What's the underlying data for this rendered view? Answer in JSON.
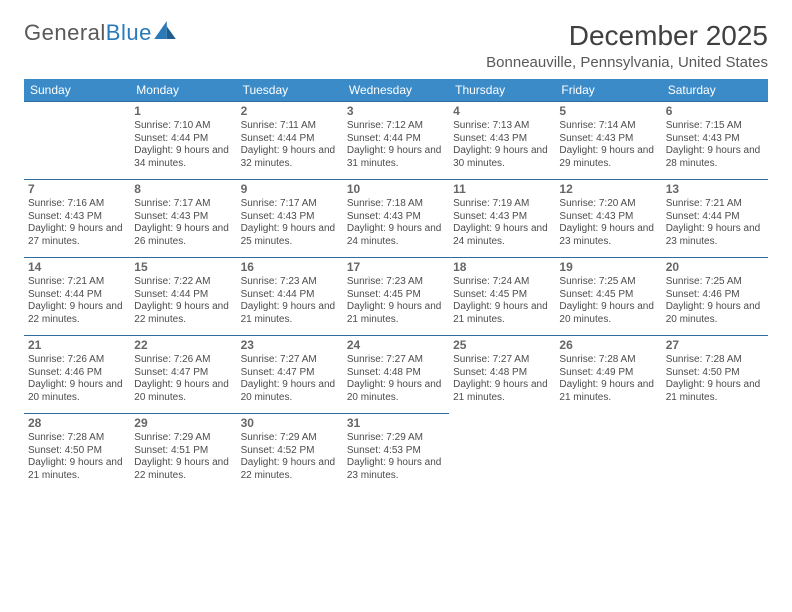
{
  "logo": {
    "text1": "General",
    "text2": "Blue"
  },
  "title": "December 2025",
  "location": "Bonneauville, Pennsylvania, United States",
  "colors": {
    "header_bg": "#3b8bc9",
    "header_text": "#ffffff",
    "cell_border": "#2e6ca0",
    "body_text": "#4a4a4a",
    "title_text": "#404040",
    "logo_gray": "#595959",
    "logo_blue": "#2a7ab8",
    "background": "#ffffff"
  },
  "typography": {
    "title_fontsize": 28,
    "location_fontsize": 15,
    "weekday_fontsize": 12,
    "daynum_fontsize": 12,
    "cell_fontsize": 10
  },
  "weekdays": [
    "Sunday",
    "Monday",
    "Tuesday",
    "Wednesday",
    "Thursday",
    "Friday",
    "Saturday"
  ],
  "weeks": [
    [
      null,
      {
        "n": "1",
        "sunrise": "7:10 AM",
        "sunset": "4:44 PM",
        "daylight": "9 hours and 34 minutes."
      },
      {
        "n": "2",
        "sunrise": "7:11 AM",
        "sunset": "4:44 PM",
        "daylight": "9 hours and 32 minutes."
      },
      {
        "n": "3",
        "sunrise": "7:12 AM",
        "sunset": "4:44 PM",
        "daylight": "9 hours and 31 minutes."
      },
      {
        "n": "4",
        "sunrise": "7:13 AM",
        "sunset": "4:43 PM",
        "daylight": "9 hours and 30 minutes."
      },
      {
        "n": "5",
        "sunrise": "7:14 AM",
        "sunset": "4:43 PM",
        "daylight": "9 hours and 29 minutes."
      },
      {
        "n": "6",
        "sunrise": "7:15 AM",
        "sunset": "4:43 PM",
        "daylight": "9 hours and 28 minutes."
      }
    ],
    [
      {
        "n": "7",
        "sunrise": "7:16 AM",
        "sunset": "4:43 PM",
        "daylight": "9 hours and 27 minutes."
      },
      {
        "n": "8",
        "sunrise": "7:17 AM",
        "sunset": "4:43 PM",
        "daylight": "9 hours and 26 minutes."
      },
      {
        "n": "9",
        "sunrise": "7:17 AM",
        "sunset": "4:43 PM",
        "daylight": "9 hours and 25 minutes."
      },
      {
        "n": "10",
        "sunrise": "7:18 AM",
        "sunset": "4:43 PM",
        "daylight": "9 hours and 24 minutes."
      },
      {
        "n": "11",
        "sunrise": "7:19 AM",
        "sunset": "4:43 PM",
        "daylight": "9 hours and 24 minutes."
      },
      {
        "n": "12",
        "sunrise": "7:20 AM",
        "sunset": "4:43 PM",
        "daylight": "9 hours and 23 minutes."
      },
      {
        "n": "13",
        "sunrise": "7:21 AM",
        "sunset": "4:44 PM",
        "daylight": "9 hours and 23 minutes."
      }
    ],
    [
      {
        "n": "14",
        "sunrise": "7:21 AM",
        "sunset": "4:44 PM",
        "daylight": "9 hours and 22 minutes."
      },
      {
        "n": "15",
        "sunrise": "7:22 AM",
        "sunset": "4:44 PM",
        "daylight": "9 hours and 22 minutes."
      },
      {
        "n": "16",
        "sunrise": "7:23 AM",
        "sunset": "4:44 PM",
        "daylight": "9 hours and 21 minutes."
      },
      {
        "n": "17",
        "sunrise": "7:23 AM",
        "sunset": "4:45 PM",
        "daylight": "9 hours and 21 minutes."
      },
      {
        "n": "18",
        "sunrise": "7:24 AM",
        "sunset": "4:45 PM",
        "daylight": "9 hours and 21 minutes."
      },
      {
        "n": "19",
        "sunrise": "7:25 AM",
        "sunset": "4:45 PM",
        "daylight": "9 hours and 20 minutes."
      },
      {
        "n": "20",
        "sunrise": "7:25 AM",
        "sunset": "4:46 PM",
        "daylight": "9 hours and 20 minutes."
      }
    ],
    [
      {
        "n": "21",
        "sunrise": "7:26 AM",
        "sunset": "4:46 PM",
        "daylight": "9 hours and 20 minutes."
      },
      {
        "n": "22",
        "sunrise": "7:26 AM",
        "sunset": "4:47 PM",
        "daylight": "9 hours and 20 minutes."
      },
      {
        "n": "23",
        "sunrise": "7:27 AM",
        "sunset": "4:47 PM",
        "daylight": "9 hours and 20 minutes."
      },
      {
        "n": "24",
        "sunrise": "7:27 AM",
        "sunset": "4:48 PM",
        "daylight": "9 hours and 20 minutes."
      },
      {
        "n": "25",
        "sunrise": "7:27 AM",
        "sunset": "4:48 PM",
        "daylight": "9 hours and 21 minutes."
      },
      {
        "n": "26",
        "sunrise": "7:28 AM",
        "sunset": "4:49 PM",
        "daylight": "9 hours and 21 minutes."
      },
      {
        "n": "27",
        "sunrise": "7:28 AM",
        "sunset": "4:50 PM",
        "daylight": "9 hours and 21 minutes."
      }
    ],
    [
      {
        "n": "28",
        "sunrise": "7:28 AM",
        "sunset": "4:50 PM",
        "daylight": "9 hours and 21 minutes."
      },
      {
        "n": "29",
        "sunrise": "7:29 AM",
        "sunset": "4:51 PM",
        "daylight": "9 hours and 22 minutes."
      },
      {
        "n": "30",
        "sunrise": "7:29 AM",
        "sunset": "4:52 PM",
        "daylight": "9 hours and 22 minutes."
      },
      {
        "n": "31",
        "sunrise": "7:29 AM",
        "sunset": "4:53 PM",
        "daylight": "9 hours and 23 minutes."
      },
      null,
      null,
      null
    ]
  ],
  "labels": {
    "sunrise": "Sunrise: ",
    "sunset": "Sunset: ",
    "daylight": "Daylight: "
  }
}
